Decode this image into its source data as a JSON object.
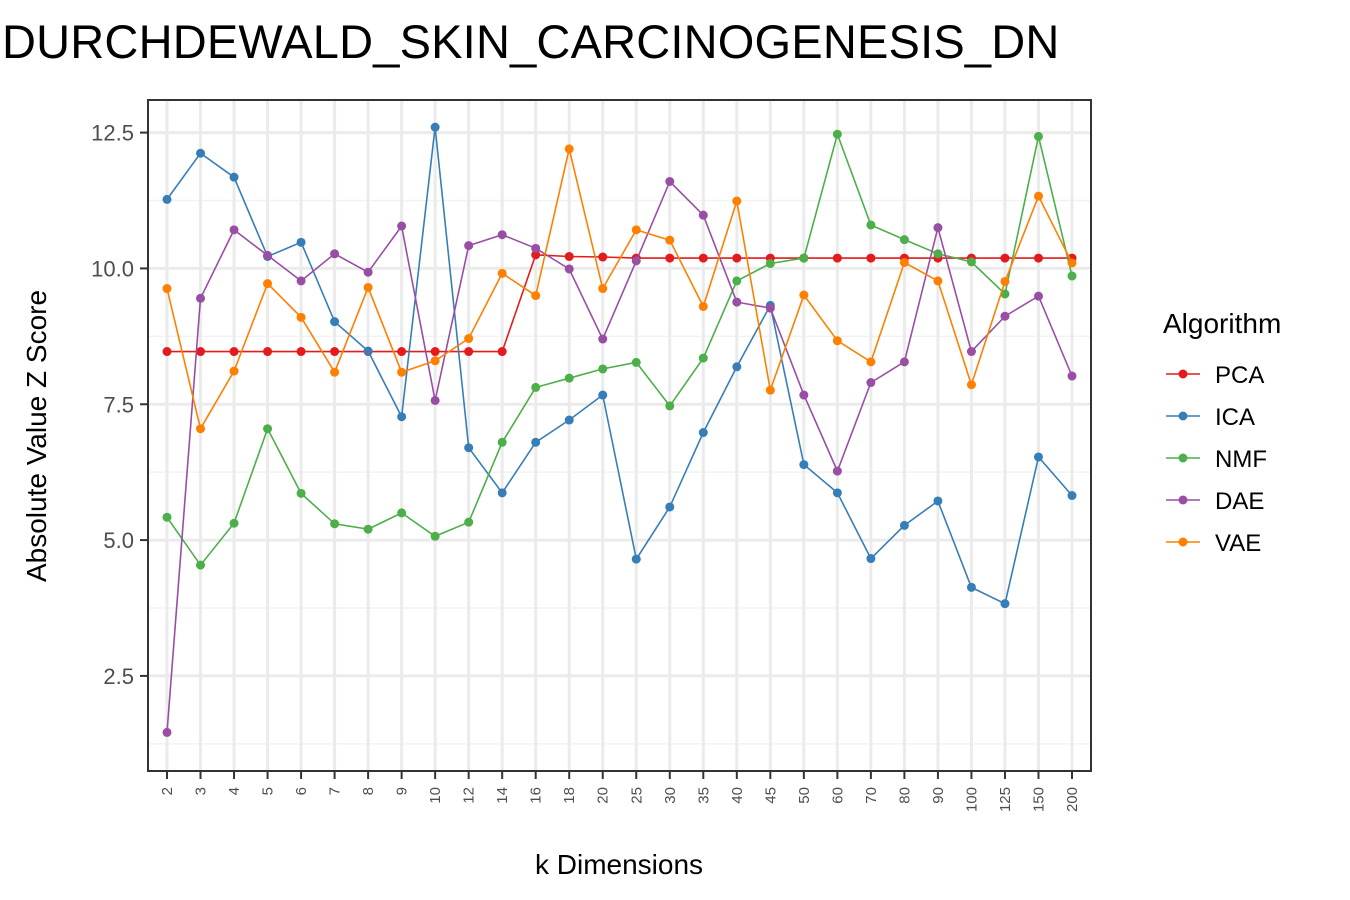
{
  "chart_data": {
    "type": "line",
    "title": "DURCHDEWALD_SKIN_CARCINOGENESIS_DN",
    "xlabel": "k Dimensions",
    "ylabel": "Absolute Value Z Score",
    "categories": [
      "2",
      "3",
      "4",
      "5",
      "6",
      "7",
      "8",
      "9",
      "10",
      "12",
      "14",
      "16",
      "18",
      "20",
      "25",
      "30",
      "35",
      "40",
      "45",
      "50",
      "60",
      "70",
      "80",
      "90",
      "100",
      "125",
      "150",
      "200"
    ],
    "yticks": [
      "2.5",
      "5.0",
      "7.5",
      "10.0",
      "12.5"
    ],
    "ylim": [
      0.75,
      13.1
    ],
    "grid": true,
    "legend": {
      "title": "Algorithm",
      "placement": "right"
    },
    "series": [
      {
        "name": "PCA",
        "color": "#e41a1c",
        "values": [
          8.47,
          8.47,
          8.47,
          8.47,
          8.47,
          8.47,
          8.47,
          8.47,
          8.47,
          8.47,
          8.47,
          10.25,
          10.22,
          10.21,
          10.19,
          10.19,
          10.19,
          10.19,
          10.19,
          10.19,
          10.19,
          10.19,
          10.19,
          10.19,
          10.19,
          10.19,
          10.19,
          10.19
        ]
      },
      {
        "name": "ICA",
        "color": "#377eb8",
        "values": [
          11.27,
          12.12,
          11.68,
          10.22,
          10.48,
          9.02,
          8.48,
          7.27,
          12.6,
          6.7,
          5.87,
          6.8,
          7.21,
          7.67,
          4.65,
          5.61,
          6.98,
          8.19,
          9.32,
          6.39,
          5.87,
          4.66,
          5.27,
          5.72,
          4.13,
          3.83,
          6.53,
          5.82
        ]
      },
      {
        "name": "NMF",
        "color": "#4daf4a",
        "values": [
          5.42,
          4.54,
          5.31,
          7.05,
          5.86,
          5.3,
          5.2,
          5.5,
          5.07,
          5.33,
          6.8,
          7.81,
          7.98,
          8.15,
          8.27,
          7.47,
          8.35,
          9.77,
          10.09,
          10.19,
          12.47,
          10.8,
          10.53,
          10.27,
          10.12,
          9.53,
          12.43,
          9.86
        ]
      },
      {
        "name": "DAE",
        "color": "#984ea3",
        "values": [
          1.46,
          9.45,
          10.71,
          10.24,
          9.77,
          10.27,
          9.93,
          10.78,
          7.57,
          10.42,
          10.62,
          10.37,
          9.99,
          8.7,
          10.14,
          11.6,
          10.98,
          9.38,
          9.27,
          7.67,
          6.27,
          7.9,
          8.28,
          10.75,
          8.47,
          9.12,
          9.49,
          8.02
        ]
      },
      {
        "name": "VAE",
        "color": "#ff7f00",
        "values": [
          9.63,
          7.05,
          8.11,
          9.72,
          9.1,
          8.09,
          9.65,
          8.09,
          8.3,
          8.71,
          9.91,
          9.5,
          12.2,
          9.63,
          10.71,
          10.52,
          9.3,
          11.24,
          7.76,
          9.51,
          8.67,
          8.28,
          10.11,
          9.77,
          7.86,
          9.76,
          11.33,
          10.1
        ]
      }
    ]
  }
}
